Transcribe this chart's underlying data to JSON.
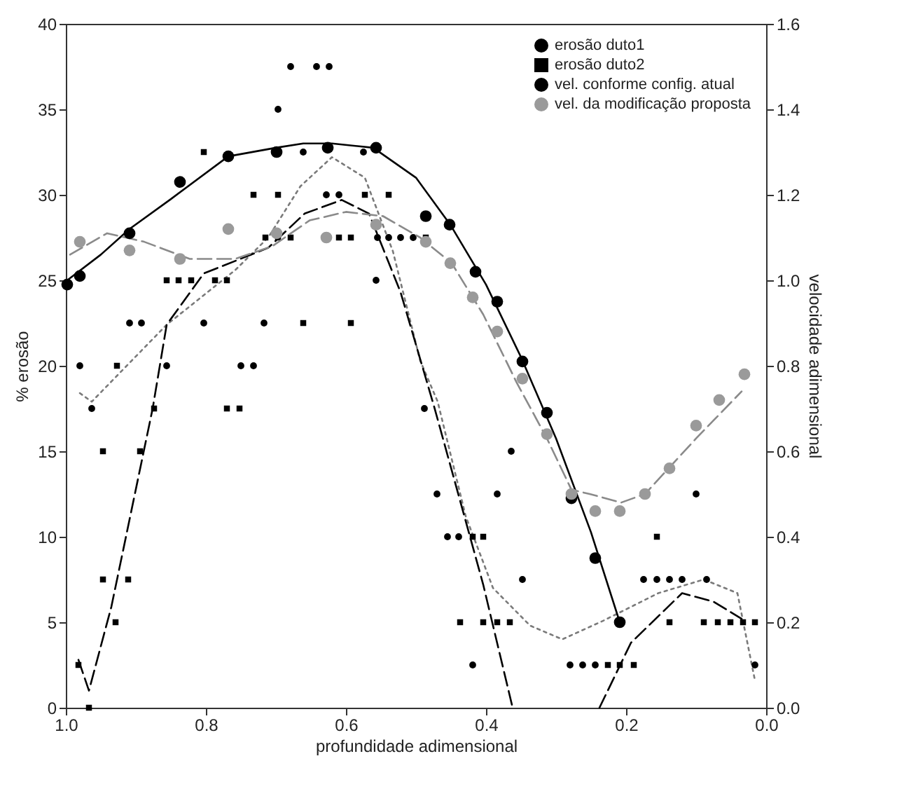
{
  "chart_data": {
    "type": "scatter",
    "xlabel": "profundidade adimensional",
    "ylabel": "% erosão",
    "y2label": "velocidade adimensional",
    "xlim": [
      1.0,
      0.0
    ],
    "xticks": [
      {
        "value": 1,
        "label": "1.0"
      },
      {
        "value": 0.8,
        "label": "0.8"
      },
      {
        "value": 0.6,
        "label": "0.6"
      },
      {
        "value": 0.4,
        "label": "0.4"
      },
      {
        "value": 0.2,
        "label": "0.2"
      },
      {
        "value": 0,
        "label": "0.0"
      }
    ],
    "ylim": [
      0,
      40
    ],
    "yticks": [
      0,
      5,
      10,
      15,
      20,
      25,
      30,
      35,
      40
    ],
    "y2lim": [
      0,
      1.6
    ],
    "y2ticks": [
      {
        "value": 0,
        "label": "0.0"
      },
      {
        "value": 0.2,
        "label": "0.2"
      },
      {
        "value": 0.4,
        "label": "0.4"
      },
      {
        "value": 0.6,
        "label": "0.6"
      },
      {
        "value": 0.8,
        "label": "0.8"
      },
      {
        "value": 1,
        "label": "1.0"
      },
      {
        "value": 1.2,
        "label": "1.2"
      },
      {
        "value": 1.4,
        "label": "1.4"
      },
      {
        "value": 1.6,
        "label": "1.6"
      }
    ],
    "grid": false,
    "legend": "top right",
    "series": [
      {
        "name": "erosão duto1",
        "marker": "circle",
        "color": "#000000",
        "x": [
          0.98,
          0.963,
          0.909,
          0.892,
          0.856,
          0.803,
          0.75,
          0.732,
          0.717,
          0.697,
          0.679,
          0.661,
          0.642,
          0.628,
          0.624,
          0.61,
          0.575,
          0.557,
          0.555,
          0.539,
          0.522,
          0.504,
          0.488,
          0.47,
          0.455,
          0.439,
          0.419,
          0.384,
          0.364,
          0.348,
          0.28,
          0.262,
          0.244,
          0.175,
          0.156,
          0.138,
          0.12,
          0.1,
          0.085,
          0.016
        ],
        "values": [
          20,
          17.5,
          22.5,
          22.5,
          20,
          22.5,
          20,
          20,
          22.5,
          35,
          37.5,
          32.5,
          37.5,
          30,
          37.5,
          30,
          32.5,
          25,
          27.5,
          27.5,
          27.5,
          27.5,
          17.5,
          12.5,
          10,
          10,
          2.5,
          12.5,
          15,
          7.5,
          2.5,
          2.5,
          2.5,
          7.5,
          7.5,
          7.5,
          7.5,
          12.5,
          7.5,
          2.5
        ]
      },
      {
        "name": "erosão duto2",
        "marker": "square",
        "color": "#000000",
        "x": [
          0.982,
          0.967,
          0.947,
          0.947,
          0.929,
          0.927,
          0.911,
          0.894,
          0.874,
          0.856,
          0.839,
          0.821,
          0.803,
          0.787,
          0.77,
          0.77,
          0.752,
          0.732,
          0.715,
          0.697,
          0.697,
          0.679,
          0.661,
          0.61,
          0.593,
          0.593,
          0.573,
          0.539,
          0.486,
          0.419,
          0.404,
          0.437,
          0.404,
          0.384,
          0.366,
          0.226,
          0.209,
          0.189,
          0.156,
          0.138,
          0.089,
          0.069,
          0.051,
          0.033,
          0.016
        ],
        "values": [
          2.5,
          0,
          15,
          7.5,
          5,
          20,
          7.5,
          15,
          17.5,
          25,
          25,
          25,
          32.5,
          25,
          25,
          17.5,
          17.5,
          30,
          27.5,
          30,
          27.5,
          27.5,
          22.5,
          27.5,
          27.5,
          22.5,
          30,
          30,
          27.5,
          10,
          10,
          5,
          5,
          5,
          5,
          2.5,
          2.5,
          2.5,
          10,
          5,
          5,
          5,
          5,
          5,
          5
        ]
      },
      {
        "name": "vel. conforme config. atual",
        "axis": "y2",
        "marker": "circle",
        "color": "#000000",
        "x": [
          0.998,
          0.98,
          0.909,
          0.837,
          0.768,
          0.699,
          0.626,
          0.557,
          0.486,
          0.452,
          0.415,
          0.384,
          0.348,
          0.313,
          0.278,
          0.244,
          0.209
        ],
        "values": [
          0.99,
          1.01,
          1.11,
          1.23,
          1.29,
          1.3,
          1.31,
          1.31,
          1.15,
          1.13,
          1.02,
          0.95,
          0.81,
          0.69,
          0.49,
          0.35,
          0.2
        ]
      },
      {
        "name": "vel. da modificação proposta",
        "axis": "y2",
        "marker": "circle",
        "color": "#9a9a9a",
        "x": [
          0.98,
          0.909,
          0.837,
          0.768,
          0.699,
          0.628,
          0.557,
          0.486,
          0.451,
          0.419,
          0.384,
          0.348,
          0.313,
          0.278,
          0.244,
          0.209,
          0.173,
          0.138,
          0.1,
          0.067,
          0.031
        ],
        "values": [
          1.09,
          1.07,
          1.05,
          1.12,
          1.11,
          1.1,
          1.13,
          1.09,
          1.04,
          0.96,
          0.88,
          0.77,
          0.64,
          0.5,
          0.46,
          0.46,
          0.5,
          0.56,
          0.66,
          0.72,
          0.78
        ]
      },
      {
        "type": "line",
        "line_style": "dotted",
        "color": "#7a7a7a",
        "x": [
          0.98,
          0.963,
          0.856,
          0.758,
          0.711,
          0.665,
          0.62,
          0.573,
          0.533,
          0.494,
          0.469,
          0.429,
          0.39,
          0.337,
          0.291,
          0.232,
          0.154,
          0.089,
          0.041,
          0.016
        ],
        "values": [
          18.4,
          17.9,
          22.4,
          25.6,
          27.5,
          30.5,
          32.2,
          31,
          26.7,
          20.3,
          17.9,
          11.2,
          7,
          4.8,
          4,
          5.1,
          6.7,
          7.5,
          6.7,
          1.6
        ]
      },
      {
        "type": "line",
        "line_style": "dashed",
        "color": "#000000",
        "x": [
          0.982,
          0.967,
          0.935,
          0.876,
          0.856,
          0.803,
          0.711,
          0.659,
          0.606,
          0.567,
          0.522,
          0.474,
          0.404,
          0.362,
          0.3,
          0.238,
          0.193,
          0.12,
          0.075,
          0.035
        ],
        "values": [
          2.8,
          1,
          5.9,
          17.5,
          22.4,
          25.4,
          26.9,
          28.9,
          29.7,
          28.9,
          24.3,
          17.6,
          7.2,
          0,
          null,
          0,
          3.8,
          6.7,
          6.2,
          5.2
        ]
      },
      {
        "type": "line",
        "axis": "y2",
        "line_style": "solid",
        "color": "#000000",
        "x": [
          0.998,
          0.95,
          0.909,
          0.85,
          0.768,
          0.7,
          0.661,
          0.62,
          0.561,
          0.5,
          0.451,
          0.4,
          0.35,
          0.3,
          0.25,
          0.209
        ],
        "values": [
          1.0,
          1.06,
          1.12,
          1.19,
          1.29,
          1.31,
          1.32,
          1.32,
          1.31,
          1.24,
          1.13,
          0.99,
          0.82,
          0.63,
          0.41,
          0.2
        ]
      },
      {
        "type": "line",
        "axis": "y2",
        "line_style": "dashed",
        "color": "#8a8a8a",
        "x": [
          0.994,
          0.941,
          0.888,
          0.823,
          0.758,
          0.705,
          0.652,
          0.6,
          0.547,
          0.494,
          0.449,
          0.404,
          0.356,
          0.313,
          0.278,
          0.252,
          0.207,
          0.173,
          0.1,
          0.035
        ],
        "values": [
          1.06,
          1.11,
          1.09,
          1.05,
          1.05,
          1.08,
          1.14,
          1.16,
          1.15,
          1.1,
          1.04,
          0.92,
          0.76,
          0.63,
          0.51,
          0.5,
          0.48,
          0.5,
          0.63,
          0.74
        ]
      }
    ]
  }
}
